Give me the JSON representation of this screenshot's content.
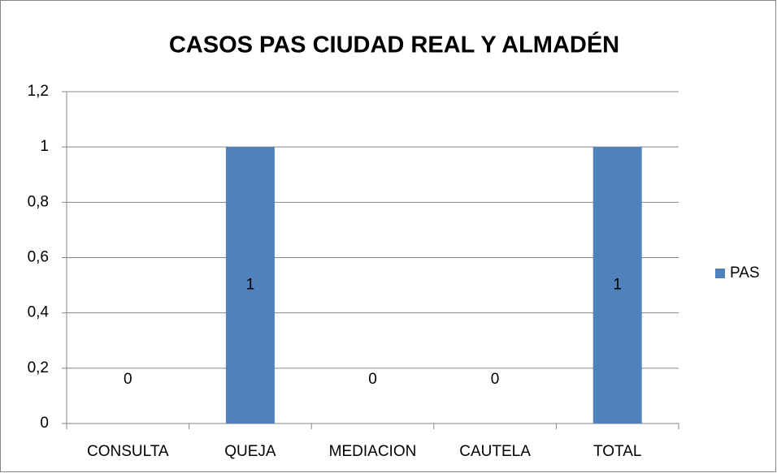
{
  "chart_data": {
    "type": "bar",
    "title": "CASOS PAS CIUDAD REAL Y ALMADÉN",
    "categories": [
      "CONSULTA",
      "QUEJA",
      "MEDIACION",
      "CAUTELA",
      "TOTAL"
    ],
    "series": [
      {
        "name": "PAS",
        "color": "#4f81bd",
        "values": [
          0,
          1,
          0,
          0,
          1
        ]
      }
    ],
    "ylim": [
      0,
      1.2
    ],
    "yticks": [
      0,
      {
        "value": 0.2,
        "label": "0,2"
      },
      {
        "value": 0.4,
        "label": "0,4"
      },
      {
        "value": 0.6,
        "label": "0,6"
      },
      {
        "value": 0.8,
        "label": "0,8"
      },
      1,
      {
        "value": 1.2,
        "label": "1,2"
      }
    ],
    "grid": true,
    "legend": "right"
  }
}
